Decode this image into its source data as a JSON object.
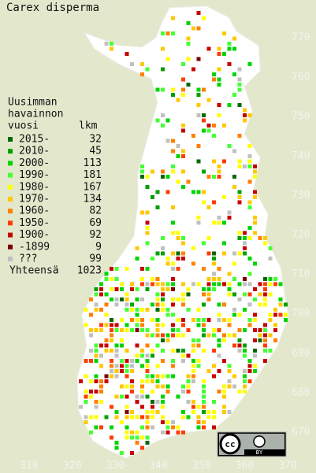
{
  "title": "Carex disperma",
  "legend": {
    "heading": [
      "Uusimman",
      "havainnon",
      "vuosi"
    ],
    "count_heading": "lkm",
    "rows": [
      {
        "label": "2015-",
        "count": 32,
        "color": "#006a00"
      },
      {
        "label": "2010-",
        "count": 45,
        "color": "#00a000"
      },
      {
        "label": "2000-",
        "count": 113,
        "color": "#00d400"
      },
      {
        "label": "1990-",
        "count": 181,
        "color": "#44ff33"
      },
      {
        "label": "1980-",
        "count": 167,
        "color": "#ffff00"
      },
      {
        "label": "1970-",
        "count": 134,
        "color": "#ffc800"
      },
      {
        "label": "1960-",
        "count": 82,
        "color": "#ff8000"
      },
      {
        "label": "1950-",
        "count": 69,
        "color": "#ff3c00"
      },
      {
        "label": "1900-",
        "count": 92,
        "color": "#c80000"
      },
      {
        "label": "-1899",
        "count": 9,
        "color": "#780000"
      },
      {
        "label": "???",
        "count": 99,
        "color": "#c0c0c0"
      }
    ],
    "total_label": "Yhteensä",
    "total": 1023
  },
  "axes": {
    "y_labels": [
      770,
      760,
      750,
      740,
      730,
      720,
      710,
      700,
      690,
      680,
      670
    ],
    "x_labels": [
      310,
      320,
      330,
      340,
      350,
      360,
      370
    ]
  },
  "license": {
    "cc": "cc",
    "by": "BY"
  }
}
